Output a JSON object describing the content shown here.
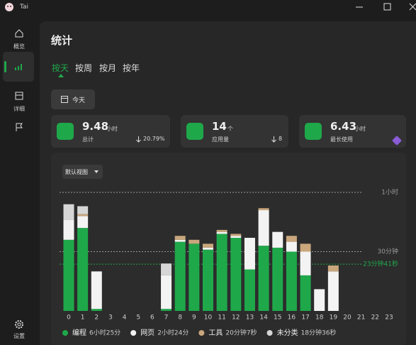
{
  "window": {
    "title": "Tai"
  },
  "sidebar": [
    "概览",
    "详细",
    "设置"
  ],
  "header": {
    "title": "统计"
  },
  "tabs": [
    "按天",
    "按周",
    "按月",
    "按年"
  ],
  "date_button": "今天",
  "cards": [
    {
      "value": 9.48,
      "unit": "小时",
      "label": "总计",
      "change": "20.79%"
    },
    {
      "value": 14,
      "unit": "个",
      "label": "应用量",
      "change": "8"
    },
    {
      "value": 6.43,
      "unit": "小时",
      "label": "最长使用"
    }
  ],
  "view_select": "默认视图",
  "chart_data": {
    "type": "stacked_bar",
    "categories": [
      "0",
      "1",
      "2",
      "3",
      "4",
      "5",
      "6",
      "7",
      "8",
      "9",
      "10",
      "11",
      "12",
      "13",
      "14",
      "15",
      "16",
      "17",
      "18",
      "19",
      "20",
      "21",
      "22",
      "23"
    ],
    "ylim": [
      0,
      60
    ],
    "series": [
      {
        "name": "编程",
        "total": "6小时25分",
        "color": "#1fa84a",
        "values": [
          36,
          42,
          1,
          0,
          0,
          0,
          0,
          1,
          35,
          34,
          31,
          39,
          37,
          21,
          33,
          32,
          30,
          18,
          0,
          0,
          0,
          0,
          0,
          0
        ]
      },
      {
        "name": "网页",
        "total": "2小时24分",
        "color": "#f3f3f3",
        "values": [
          10,
          6,
          19,
          0,
          0,
          0,
          0,
          17,
          1,
          0,
          1,
          1,
          1,
          16,
          18,
          8,
          5,
          12,
          11,
          20,
          0,
          0,
          0,
          0
        ]
      },
      {
        "name": "工具",
        "total": "20分钟7秒",
        "color": "#c9a67c",
        "values": [
          0,
          1,
          0,
          0,
          0,
          0,
          0,
          0,
          2,
          2,
          2,
          1,
          1,
          0,
          1,
          0,
          3,
          4,
          0,
          3,
          0,
          0,
          0,
          0
        ]
      },
      {
        "name": "未分类",
        "total": "18分钟36秒",
        "color": "#d6d6d6",
        "values": [
          8,
          4,
          0,
          0,
          0,
          0,
          0,
          6,
          0,
          0,
          0,
          0,
          0,
          0,
          0,
          0,
          0,
          0,
          0,
          0,
          0,
          0,
          0,
          0
        ]
      }
    ],
    "ref_lines": [
      {
        "value": 60,
        "label": "1小时",
        "color": "#9a9a9a"
      },
      {
        "value": 30,
        "label": "30分钟",
        "color": "#9a9a9a"
      },
      {
        "value": 23.68,
        "label": "23分钟41秒",
        "color": "#1fa84a"
      }
    ]
  }
}
